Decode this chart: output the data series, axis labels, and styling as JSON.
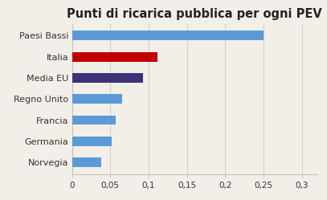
{
  "title": "Punti di ricarica pubblica per ogni PEV",
  "categories": [
    "Norvegia",
    "Germania",
    "Francia",
    "Regno Unito",
    "Media EU",
    "Italia",
    "Paesi Bassi"
  ],
  "values": [
    0.038,
    0.052,
    0.057,
    0.065,
    0.093,
    0.112,
    0.25
  ],
  "bar_colors": [
    "#5b9bd5",
    "#5b9bd5",
    "#5b9bd5",
    "#5b9bd5",
    "#3d3277",
    "#c00000",
    "#5b9bd5"
  ],
  "xlim": [
    0,
    0.32
  ],
  "xticks": [
    0,
    0.05,
    0.1,
    0.15,
    0.2,
    0.25,
    0.3
  ],
  "xtick_labels": [
    "0",
    "0,05",
    "0,1",
    "0,15",
    "0,2",
    "0,25",
    "0,3"
  ],
  "background_color": "#f2efe8",
  "title_fontsize": 10.5,
  "label_fontsize": 8.0,
  "tick_fontsize": 7.5,
  "bar_height": 0.45,
  "grid_color": "#d4cfc4",
  "spine_color": "#c8c2b6"
}
